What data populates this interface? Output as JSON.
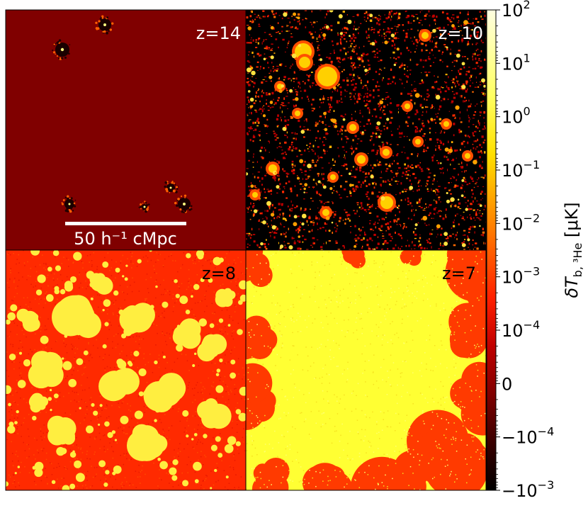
{
  "chart_data": {
    "type": "heatmap",
    "panels": [
      {
        "label": "z=14",
        "background": "#800000",
        "regime": "neutral"
      },
      {
        "label": "z=10",
        "background": "#000000",
        "regime": "bubbles"
      },
      {
        "label": "z=8",
        "background": "#ff2a00",
        "regime": "patchy"
      },
      {
        "label": "z=7",
        "background": "#ffff33",
        "regime": "ionized"
      }
    ],
    "scalebar": {
      "label": "50 h⁻¹ cMpc"
    },
    "colorbar": {
      "label": "δT",
      "label_sub": "b, ³He",
      "label_unit": " [μK]",
      "scale": "symlog",
      "range": [
        -0.001,
        100
      ],
      "ticks": [
        {
          "base": "10",
          "exp": "2"
        },
        {
          "base": "10",
          "exp": "1"
        },
        {
          "base": "10",
          "exp": "0"
        },
        {
          "base": "10",
          "exp": "−1"
        },
        {
          "base": "10",
          "exp": "−2"
        },
        {
          "base": "10",
          "exp": "−3"
        },
        {
          "base": "10",
          "exp": "−4"
        },
        {
          "base": "0",
          "exp": ""
        },
        {
          "base": "−10",
          "exp": "−4"
        },
        {
          "base": "−10",
          "exp": "−3"
        }
      ],
      "colors": [
        "#000000",
        "#3a0000",
        "#800000",
        "#c00000",
        "#ff2000",
        "#ff6000",
        "#ffa000",
        "#ffe000",
        "#ffff60",
        "#ffffe0"
      ]
    }
  }
}
